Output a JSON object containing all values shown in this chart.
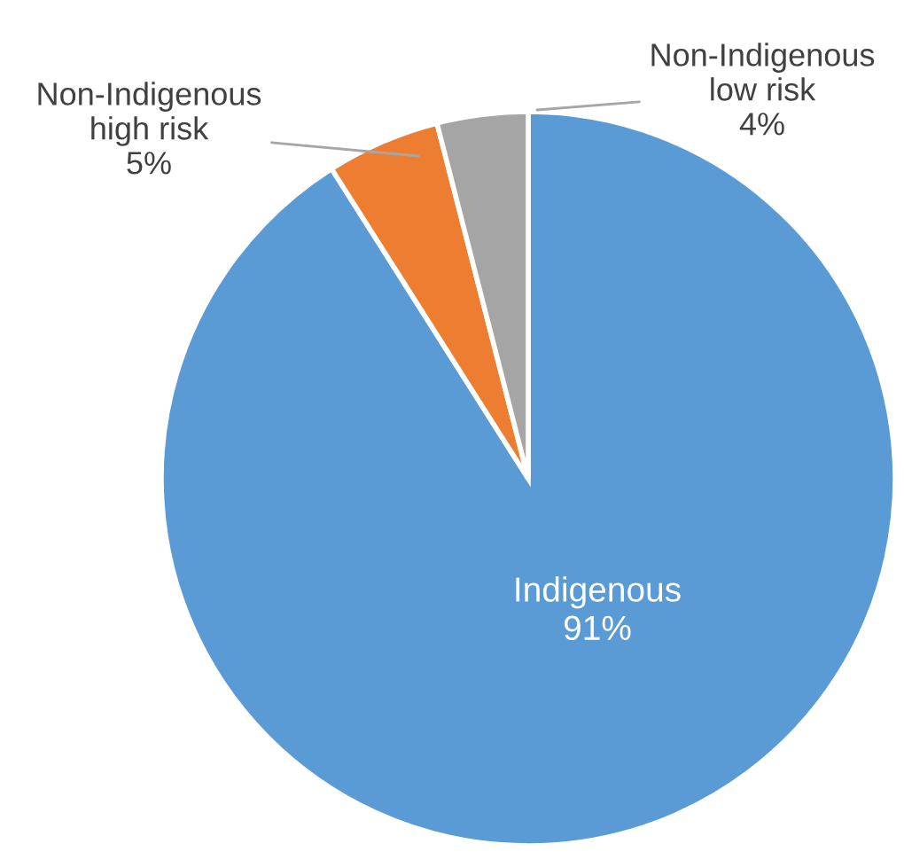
{
  "chart_data": {
    "type": "pie",
    "categories": [
      "Indigenous",
      "Non-Indigenous high risk",
      "Non-Indigenous low risk"
    ],
    "values": [
      91,
      5,
      4
    ],
    "colors": [
      "#5b9bd5",
      "#ed7d31",
      "#a5a5a5"
    ],
    "value_labels": [
      "91%",
      "5%",
      "4%"
    ]
  }
}
